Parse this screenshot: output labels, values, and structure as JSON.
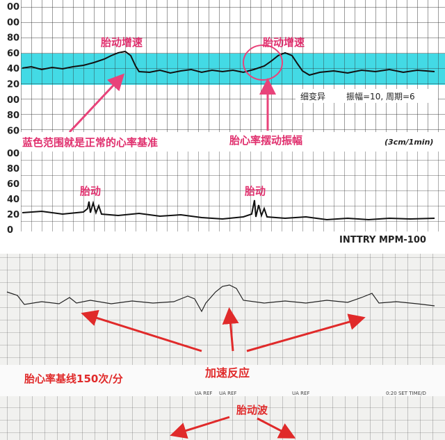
{
  "top_panel": {
    "axis_labels": [
      "00",
      "00",
      "80",
      "60",
      "40",
      "20",
      "00",
      "80",
      "60"
    ],
    "annotations": {
      "accel_left": "胎动增速",
      "accel_right": "胎动增速",
      "variability": "细变异",
      "amplitude": "振幅=10, 周期=6",
      "normal_band": "蓝色范围就是正常的心率基准",
      "swing": "胎心率摆动振幅",
      "speed": "(3cm/1min)"
    }
  },
  "middle_panel": {
    "axis_labels": [
      "00",
      "80",
      "60",
      "40",
      "20",
      "0"
    ],
    "movement_left": "胎动",
    "movement_right": "胎动",
    "device": "INTTRY  MPM-100"
  },
  "bottom_panel": {
    "baseline": "胎心率基线150次/分",
    "acceleration": "加速反应",
    "movement_wave": "胎动波",
    "ua_ref_1": "UA REF",
    "ua_ref_2": "UA REF",
    "ua_ref_3": "UA REF",
    "set_time": "0:20  SET TIME/D"
  }
}
